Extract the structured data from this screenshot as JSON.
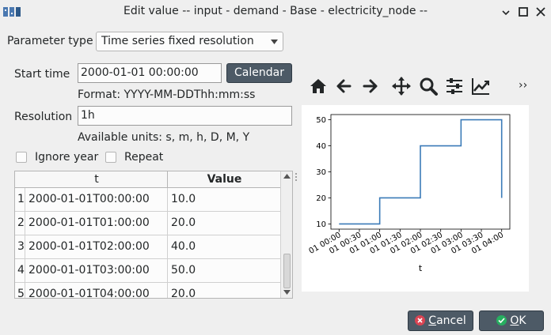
{
  "window": {
    "title": "Edit value    -- input - demand - Base - electricity_node --"
  },
  "param_type": {
    "label": "Parameter type",
    "value": "Time series fixed resolution"
  },
  "start_time": {
    "label": "Start time",
    "value": "2000-01-01 00:00:00",
    "calendar_label": "Calendar",
    "format_hint": "Format: YYYY-MM-DDThh:mm:ss"
  },
  "resolution": {
    "label": "Resolution",
    "value": "1h",
    "units_hint": "Available units: s, m, h, D, M, Y"
  },
  "options": {
    "ignore_year": "Ignore year",
    "repeat": "Repeat"
  },
  "table": {
    "headers": [
      "t",
      "Value"
    ],
    "rows": [
      {
        "n": "1",
        "t": "2000-01-01T00:00:00",
        "v": "10.0"
      },
      {
        "n": "2",
        "t": "2000-01-01T01:00:00",
        "v": "20.0"
      },
      {
        "n": "3",
        "t": "2000-01-01T02:00:00",
        "v": "40.0"
      },
      {
        "n": "4",
        "t": "2000-01-01T03:00:00",
        "v": "50.0"
      },
      {
        "n": "5",
        "t": "2000-01-01T04:00:00",
        "v": "20.0"
      }
    ]
  },
  "toolbar": {
    "icons": [
      "home-icon",
      "back-icon",
      "forward-icon",
      "pan-icon",
      "zoom-icon",
      "configure-subplots-icon",
      "edit-axis-icon",
      "more-icon"
    ],
    "overflow": "››"
  },
  "chart_data": {
    "type": "line",
    "step": "post",
    "x": [
      "01 00:00",
      "01 01:00",
      "01 02:00",
      "01 03:00",
      "01 04:00"
    ],
    "values": [
      10,
      20,
      40,
      50,
      20
    ],
    "xticks": [
      "01 00:00",
      "01 00:30",
      "01 01:00",
      "01 01:30",
      "01 02:00",
      "01 02:30",
      "01 03:00",
      "01 03:30",
      "01 04:00"
    ],
    "yticks": [
      "10",
      "20",
      "30",
      "40",
      "50"
    ],
    "xlabel": "t",
    "ylim": [
      8.0,
      52.0
    ],
    "color": "#3b7bb8"
  },
  "buttons": {
    "cancel": "Cancel",
    "ok": "OK"
  },
  "colors": {
    "button_bg": "#4d5a66",
    "cancel_icon": "#da4453",
    "ok_icon": "#27ae60"
  }
}
